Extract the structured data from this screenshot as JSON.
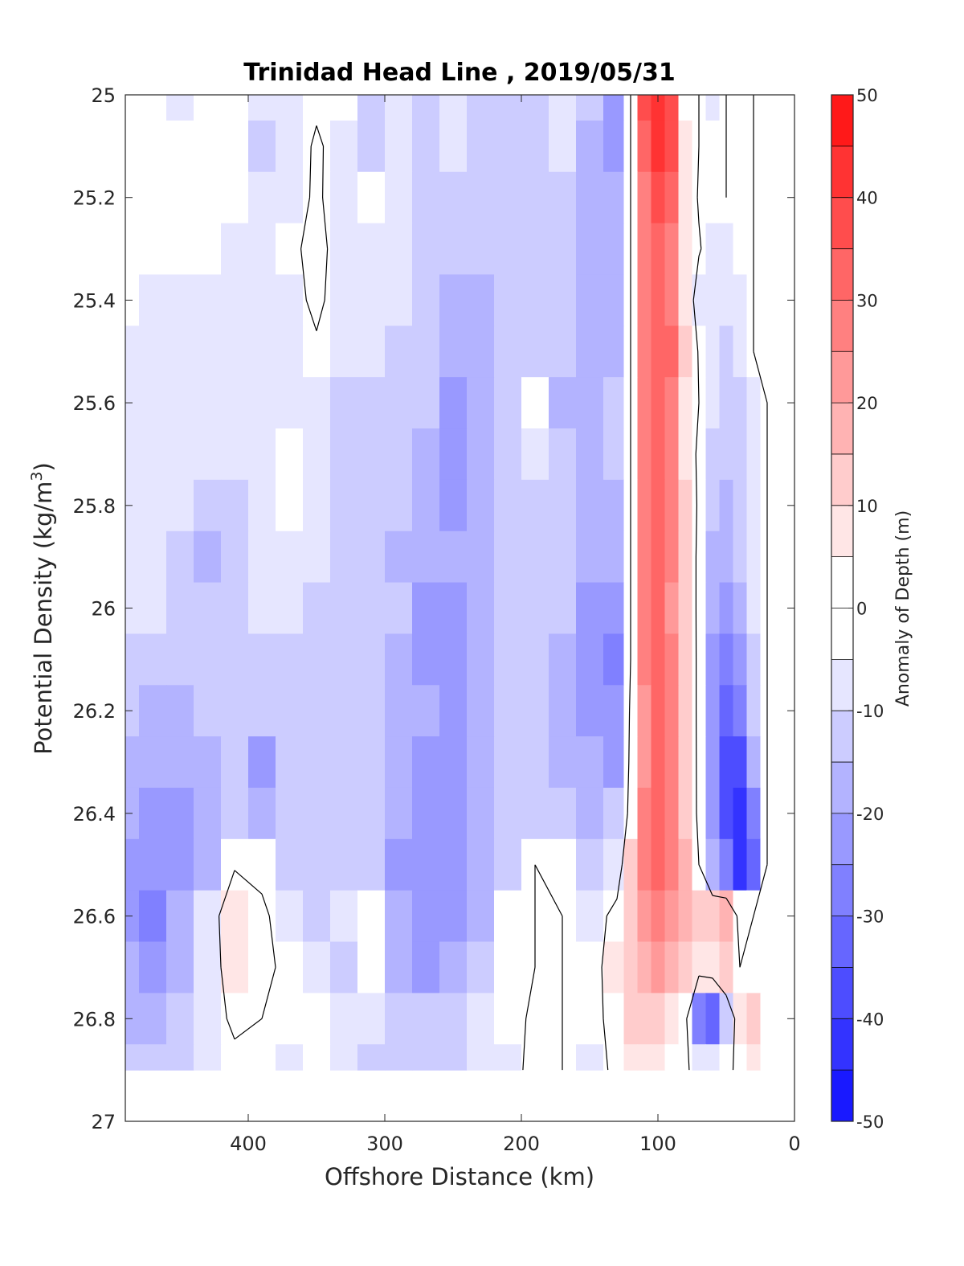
{
  "chart_data": {
    "type": "heatmap",
    "title": "Trinidad Head Line , 2019/05/31",
    "xlabel": "Offshore Distance (km)",
    "ylabel_main": "Potential Density (kg/m",
    "ylabel_sup": "3",
    "ylabel_tail": ")",
    "colorbar_label": "Anomaly of Depth (m)",
    "xlim": [
      490,
      0
    ],
    "x_reversed": true,
    "ylim": [
      27,
      25
    ],
    "y_reversed": true,
    "x_ticks": [
      "400",
      "300",
      "200",
      "100",
      "0"
    ],
    "x_tick_values": [
      400,
      300,
      200,
      100,
      0
    ],
    "y_ticks": [
      "25",
      "25.2",
      "25.4",
      "25.6",
      "25.8",
      "26",
      "26.2",
      "26.4",
      "26.6",
      "26.8",
      "27"
    ],
    "y_tick_values": [
      25,
      25.2,
      25.4,
      25.6,
      25.8,
      26,
      26.2,
      26.4,
      26.6,
      26.8,
      27
    ],
    "colorbar_ticks": [
      "50",
      "40",
      "30",
      "20",
      "10",
      "0",
      "-10",
      "-20",
      "-30",
      "-40",
      "-50"
    ],
    "colorbar_tick_values": [
      50,
      40,
      30,
      20,
      10,
      0,
      -10,
      -20,
      -30,
      -40,
      -50
    ],
    "clim": [
      -50,
      50
    ],
    "contour_interval": 5,
    "data_extent": {
      "x": [
        490,
        15
      ],
      "y": [
        25,
        26.9
      ]
    },
    "grid": false,
    "distance_km": [
      490,
      470,
      450,
      430,
      410,
      390,
      370,
      350,
      330,
      310,
      290,
      270,
      250,
      230,
      210,
      190,
      170,
      150,
      130,
      120,
      110,
      100,
      90,
      80,
      70,
      60,
      50,
      40,
      30,
      20
    ],
    "sigma_levels": [
      25.0,
      25.1,
      25.2,
      25.3,
      25.4,
      25.5,
      25.6,
      25.7,
      25.8,
      25.9,
      26.0,
      26.1,
      26.2,
      26.3,
      26.4,
      26.5,
      26.6,
      26.7,
      26.8,
      26.9
    ],
    "anomaly_m": [
      [
        -3,
        -3,
        -5,
        -3,
        -3,
        -9,
        -8,
        -3,
        -3,
        -10,
        -9,
        -12,
        -9,
        -10,
        -12,
        -12,
        -7,
        -14,
        -21,
        0,
        38,
        44,
        38,
        4,
        0,
        -5,
        0,
        -3,
        0,
        0
      ],
      [
        -3,
        -3,
        -3,
        -3,
        -4,
        -10,
        -8,
        2,
        -6,
        -10,
        -9,
        -12,
        -9,
        -11,
        -11,
        -12,
        -8,
        -15,
        -21,
        0,
        34,
        40,
        36,
        7,
        0,
        -3,
        0,
        -3,
        0,
        0
      ],
      [
        -2,
        -3,
        -2,
        -3,
        -4,
        -8,
        -6,
        2,
        -7,
        -4,
        -9,
        -12,
        -10,
        -12,
        -11,
        -12,
        -11,
        -15,
        -16,
        0,
        27,
        35,
        31,
        8,
        -1,
        -2,
        0,
        -3,
        0,
        0
      ],
      [
        -1,
        -2,
        -2,
        -2,
        -5,
        -6,
        -3,
        4,
        -6,
        -6,
        -9,
        -12,
        -13,
        -13,
        -13,
        -13,
        -12,
        -15,
        -16,
        0,
        27,
        31,
        28,
        9,
        1,
        -5,
        -6,
        -3,
        0,
        0
      ],
      [
        -4,
        -5,
        -5,
        -7,
        -5,
        -6,
        -5,
        3,
        -7,
        -9,
        -9,
        -13,
        -16,
        -15,
        -13,
        -14,
        -12,
        -15,
        -18,
        0,
        29,
        33,
        29,
        9,
        -6,
        -7,
        -8,
        -5,
        0,
        0
      ],
      [
        -7,
        -7,
        -7,
        -7,
        -8,
        -8,
        -6,
        -2,
        -9,
        -9,
        -10,
        -11,
        -18,
        -18,
        -13,
        -14,
        -12,
        -15,
        -17,
        0,
        28,
        33,
        31,
        12,
        -1,
        -8,
        -10,
        -8,
        0,
        0
      ],
      [
        -9,
        -8,
        -7,
        -6,
        -9,
        -8,
        -6,
        -7,
        -11,
        -10,
        -11,
        -12,
        -22,
        -17,
        -12,
        -4,
        -15,
        -17,
        -13,
        0,
        27,
        34,
        27,
        8,
        0,
        -8,
        -12,
        -10,
        -5,
        0
      ],
      [
        -7,
        -9,
        -9,
        -9,
        -9,
        -8,
        -3,
        -8,
        -12,
        -12,
        -11,
        -15,
        -21,
        -16,
        -12,
        -7,
        -14,
        -18,
        -13,
        0,
        26,
        34,
        26,
        7,
        -2,
        -10,
        -14,
        -11,
        -5,
        0
      ],
      [
        -8,
        -9,
        -9,
        -12,
        -10,
        -5,
        -3,
        -9,
        -11,
        -12,
        -12,
        -16,
        -20,
        -18,
        -13,
        -11,
        -13,
        -17,
        -19,
        0,
        26,
        33,
        28,
        11,
        -2,
        -13,
        -16,
        -12,
        -5,
        0
      ],
      [
        -9,
        -9,
        -13,
        -15,
        -11,
        -8,
        -7,
        -9,
        -11,
        -12,
        -15,
        -18,
        -18,
        -19,
        -13,
        -11,
        -13,
        -17,
        -19,
        0,
        27,
        33,
        27,
        11,
        -3,
        -15,
        -19,
        -14,
        -7,
        0
      ],
      [
        -7,
        -8,
        -12,
        -14,
        -11,
        -9,
        -8,
        -10,
        -12,
        -12,
        -13,
        -22,
        -22,
        -19,
        -13,
        -10,
        -14,
        -21,
        -24,
        0,
        26,
        33,
        24,
        11,
        -3,
        -17,
        -21,
        -17,
        -9,
        0
      ],
      [
        -10,
        -11,
        -13,
        -12,
        -11,
        -10,
        -10,
        -12,
        -12,
        -13,
        -17,
        -22,
        -20,
        -16,
        -13,
        -11,
        -15,
        -20,
        -25,
        0,
        25,
        32,
        26,
        12,
        -3,
        -20,
        -27,
        -20,
        -10,
        0
      ],
      [
        -13,
        -16,
        -16,
        -13,
        -12,
        -12,
        -12,
        -14,
        -12,
        -14,
        -17,
        -18,
        -20,
        -17,
        -14,
        -11,
        -15,
        -20,
        -22,
        2,
        24,
        33,
        28,
        12,
        -3,
        -20,
        -30,
        -25,
        -14,
        0
      ],
      [
        -15,
        -17,
        -19,
        -15,
        -14,
        -20,
        -10,
        -13,
        -12,
        -14,
        -18,
        -21,
        -20,
        -17,
        -14,
        -13,
        -17,
        -19,
        -20,
        3,
        24,
        34,
        28,
        13,
        -3,
        -23,
        -35,
        -35,
        -16,
        0
      ],
      [
        -17,
        -20,
        -22,
        -17,
        -14,
        -17,
        -12,
        -12,
        -12,
        -14,
        -19,
        -24,
        -22,
        -18,
        -14,
        -12,
        -14,
        -18,
        -14,
        4,
        25,
        33,
        28,
        14,
        -3,
        -22,
        -36,
        -44,
        -28,
        0
      ],
      [
        -20,
        -24,
        -21,
        -15,
        -1,
        -4,
        -12,
        -12,
        -11,
        -13,
        -20,
        -24,
        -22,
        -17,
        -12,
        0,
        -4,
        -12,
        -6,
        10,
        25,
        31,
        25,
        15,
        0,
        -15,
        -28,
        -40,
        -30,
        0
      ],
      [
        -21,
        -25,
        -19,
        -6,
        8,
        3,
        -8,
        -10,
        -9,
        -4,
        -17,
        -22,
        -22,
        -15,
        -4,
        0,
        0,
        -5,
        3,
        12,
        22,
        27,
        24,
        17,
        12,
        10,
        15,
        -4,
        0,
        0
      ],
      [
        -19,
        -21,
        -16,
        -6,
        6,
        3,
        -3,
        -8,
        -11,
        -4,
        -17,
        -20,
        -16,
        -11,
        -4,
        0,
        0,
        -4,
        5,
        12,
        18,
        20,
        16,
        10,
        5,
        8,
        12,
        0,
        0,
        0
      ],
      [
        -17,
        -19,
        -12,
        -5,
        2,
        0,
        -2,
        -4,
        -9,
        -8,
        -11,
        -14,
        -12,
        -7,
        -4,
        2,
        0,
        -4,
        4,
        11,
        13,
        10,
        8,
        3,
        -25,
        -30,
        -10,
        6,
        10,
        0
      ],
      [
        -14,
        -14,
        -10,
        -7,
        -3,
        -2,
        -6,
        -4,
        -8,
        -11,
        -10,
        -12,
        -10,
        -7,
        -5,
        4,
        0,
        -6,
        3,
        8,
        7,
        6,
        4,
        2,
        -5,
        -8,
        -3,
        3,
        6,
        0
      ]
    ],
    "zero_contour_note": "black line marks 0 m anomaly"
  }
}
